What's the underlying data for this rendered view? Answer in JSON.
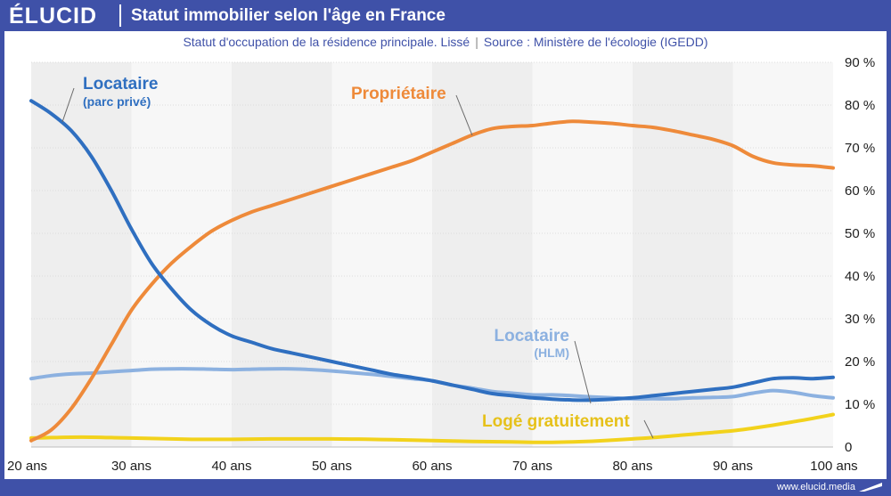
{
  "header": {
    "logo": "ÉLUCID",
    "title": "Statut immobilier selon l'âge en France",
    "subtitle_main": "Statut d'occupation de la résidence principale. Lissé",
    "subtitle_sep": "|",
    "subtitle_source": "Source : Ministère de l'écologie (IGEDD)"
  },
  "footer": {
    "url": "www.elucid.media"
  },
  "colors": {
    "frame": "#3f51a8",
    "prive": "#2f6fc0",
    "proprietaire": "#ee8a3a",
    "hlm": "#8cb1e0",
    "gratuit": "#f2d21c"
  },
  "chart_data": {
    "type": "line",
    "title": "Statut immobilier selon l'âge en France",
    "subtitle": "Statut d'occupation de la résidence principale. Lissé",
    "x_tick_labels": [
      "20 ans",
      "30 ans",
      "40 ans",
      "50 ans",
      "60 ans",
      "70 ans",
      "80 ans",
      "90 ans",
      "100 ans"
    ],
    "y_tick_labels": [
      "0",
      "10 %",
      "20 %",
      "30 %",
      "40 %",
      "50 %",
      "60 %",
      "70 %",
      "80 %",
      "90 %"
    ],
    "xlim": [
      20,
      100
    ],
    "ylim": [
      0,
      90
    ],
    "grid": true,
    "y_axis_side": "right",
    "series": [
      {
        "name": "Locataire",
        "sub": "(parc privé)",
        "color": "#2f6fc0",
        "x": [
          20,
          22,
          24,
          26,
          28,
          30,
          32,
          34,
          36,
          38,
          40,
          42,
          44,
          46,
          48,
          50,
          52,
          54,
          56,
          58,
          60,
          62,
          64,
          66,
          68,
          70,
          72,
          74,
          76,
          78,
          80,
          82,
          84,
          86,
          88,
          90,
          92,
          94,
          96,
          98,
          100
        ],
        "y": [
          81,
          78,
          74,
          68,
          60,
          51,
          43,
          37,
          32,
          28.5,
          26,
          24.5,
          23,
          22,
          21,
          20,
          19,
          18,
          17,
          16.3,
          15.5,
          14.5,
          13.5,
          12.5,
          12,
          11.5,
          11.2,
          11,
          11,
          11.2,
          11.5,
          12,
          12.5,
          13,
          13.5,
          14,
          15,
          16,
          16.2,
          16,
          16.3
        ]
      },
      {
        "name": "Propriétaire",
        "sub": "",
        "color": "#ee8a3a",
        "x": [
          20,
          22,
          24,
          26,
          28,
          30,
          32,
          34,
          36,
          38,
          40,
          42,
          44,
          46,
          48,
          50,
          52,
          54,
          56,
          58,
          60,
          62,
          64,
          66,
          68,
          70,
          72,
          74,
          76,
          78,
          80,
          82,
          84,
          86,
          88,
          90,
          92,
          94,
          96,
          98,
          100
        ],
        "y": [
          1.5,
          4,
          9,
          16,
          24,
          32,
          38,
          43,
          47,
          50.5,
          53,
          55,
          56.5,
          58,
          59.5,
          61,
          62.5,
          64,
          65.5,
          67,
          69,
          71,
          73,
          74.5,
          75,
          75.2,
          75.8,
          76.2,
          76,
          75.7,
          75.2,
          74.8,
          74,
          73,
          72,
          70.5,
          68,
          66.5,
          66,
          65.8,
          65.3
        ]
      },
      {
        "name": "Locataire",
        "sub": "(HLM)",
        "color": "#8cb1e0",
        "x": [
          20,
          22,
          24,
          26,
          28,
          30,
          32,
          34,
          36,
          38,
          40,
          42,
          44,
          46,
          48,
          50,
          52,
          54,
          56,
          58,
          60,
          62,
          64,
          66,
          68,
          70,
          72,
          74,
          76,
          78,
          80,
          82,
          84,
          86,
          88,
          90,
          92,
          94,
          96,
          98,
          100
        ],
        "y": [
          16,
          16.7,
          17.1,
          17.3,
          17.6,
          17.9,
          18.2,
          18.3,
          18.3,
          18.2,
          18.1,
          18.2,
          18.3,
          18.3,
          18.1,
          17.8,
          17.4,
          17,
          16.5,
          16,
          15.5,
          14.5,
          13.8,
          13,
          12.6,
          12.2,
          12.2,
          12,
          11.7,
          11.5,
          11.3,
          11.3,
          11.3,
          11.5,
          11.6,
          11.8,
          12.6,
          13.2,
          12.8,
          12,
          11.5
        ]
      },
      {
        "name": "Logé gratuitement",
        "sub": "",
        "color": "#f2d21c",
        "x": [
          20,
          22,
          24,
          26,
          28,
          30,
          32,
          34,
          36,
          38,
          40,
          42,
          44,
          46,
          48,
          50,
          52,
          54,
          56,
          58,
          60,
          62,
          64,
          66,
          68,
          70,
          72,
          74,
          76,
          78,
          80,
          82,
          84,
          86,
          88,
          90,
          92,
          94,
          96,
          98,
          100
        ],
        "y": [
          2.1,
          2.2,
          2.3,
          2.3,
          2.2,
          2.1,
          2,
          1.9,
          1.8,
          1.8,
          1.8,
          1.85,
          1.9,
          1.9,
          1.9,
          1.9,
          1.85,
          1.8,
          1.7,
          1.6,
          1.5,
          1.4,
          1.3,
          1.25,
          1.2,
          1.1,
          1.1,
          1.2,
          1.35,
          1.6,
          1.9,
          2.2,
          2.6,
          3,
          3.4,
          3.8,
          4.4,
          5.1,
          5.9,
          6.7,
          7.6
        ]
      }
    ]
  }
}
